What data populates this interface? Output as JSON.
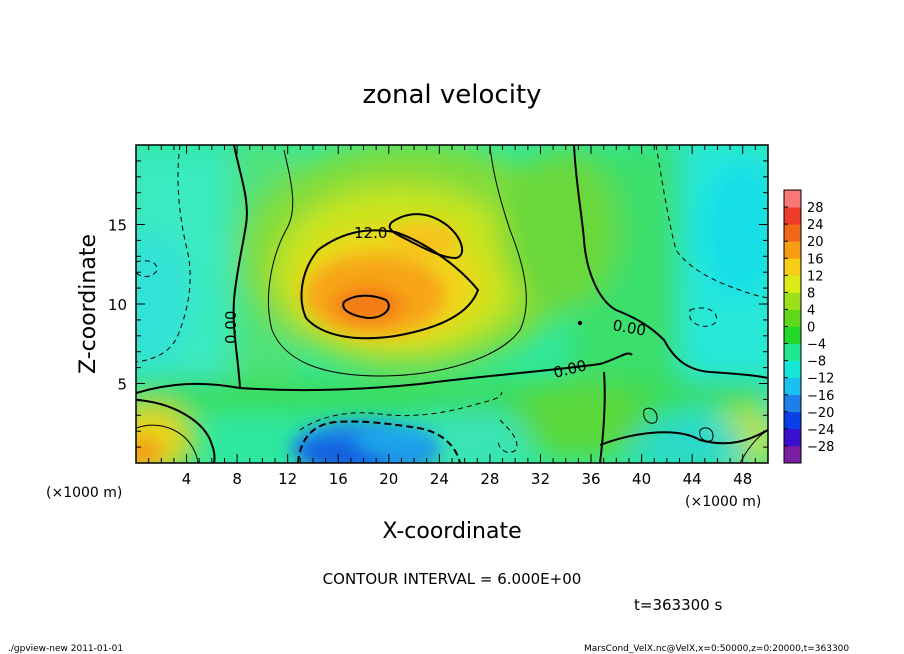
{
  "chart_data": {
    "type": "heatmap",
    "title": "zonal velocity",
    "xlabel": "X-coordinate",
    "ylabel": "Z-coordinate",
    "x_unit": "(×1000 m)",
    "z_unit": "(×1000 m)",
    "xlim": [
      0,
      50
    ],
    "ylim": [
      0,
      20
    ],
    "x_ticks": [
      "4",
      "8",
      "12",
      "16",
      "20",
      "24",
      "28",
      "32",
      "36",
      "40",
      "44",
      "48"
    ],
    "y_ticks": [
      "5",
      "10",
      "15"
    ],
    "colorbar_labels": [
      "28",
      "24",
      "20",
      "16",
      "12",
      "8",
      "4",
      "0",
      "−4",
      "−8",
      "−12",
      "−16",
      "−20",
      "−24",
      "−28"
    ],
    "colorbar_colors": [
      "#7a1fa2",
      "#3a0fd0",
      "#0a3ee6",
      "#1f7fe8",
      "#19c0f0",
      "#14e6d8",
      "#1fe88f",
      "#22d82a",
      "#5fd81a",
      "#9be019",
      "#dceb18",
      "#f6ce15",
      "#f79d13",
      "#f26818",
      "#ef3b2c",
      "#f87878"
    ],
    "contour_labels": [
      "12.0",
      "0.00",
      "0.00",
      "0.00"
    ],
    "contour_interval": "CONTOUR INTERVAL = 6.000E+00",
    "time": "t=363300 s",
    "features": [
      {
        "x": 19,
        "z": 10.5,
        "value": 18
      },
      {
        "x": 22,
        "z": 13.5,
        "value": 13
      },
      {
        "x": 20,
        "z": 1.5,
        "value": -15
      },
      {
        "x": 2,
        "z": 2.5,
        "value": 13
      },
      {
        "x": 46,
        "z": 12,
        "value": -10
      },
      {
        "x": 2,
        "z": 11,
        "value": -8
      }
    ]
  },
  "footer": {
    "left": "./gpview-new   2011-01-01",
    "right": "MarsCond_VelX.nc@VelX,x=0:50000,z=0:20000,t=363300"
  }
}
